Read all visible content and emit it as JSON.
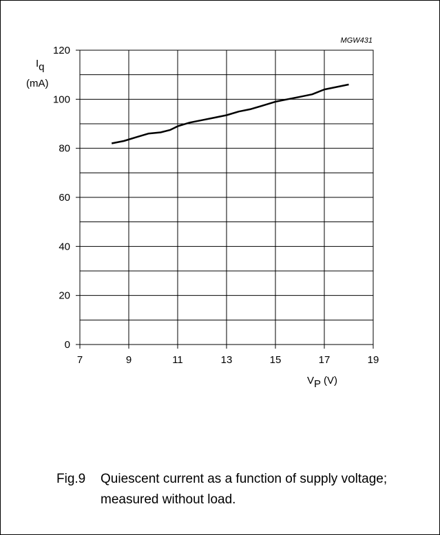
{
  "figure": {
    "code": "MGW431",
    "number": "Fig.9",
    "caption": "Quiescent current as a function of supply voltage; measured without load."
  },
  "chart_data": {
    "type": "line",
    "ylabel_symbol": "I",
    "ylabel_sub": "q",
    "ylabel_unit": "(mA)",
    "xlabel_symbol": "V",
    "xlabel_sub": "P",
    "xlabel_unit": "(V)",
    "xlim": [
      7,
      19
    ],
    "ylim": [
      0,
      120
    ],
    "xticks": [
      7,
      9,
      11,
      13,
      15,
      17,
      19
    ],
    "yticks": [
      0,
      20,
      40,
      60,
      80,
      100,
      120
    ],
    "grid": true,
    "series": [
      {
        "x": [
          8.3,
          8.8,
          9.3,
          9.8,
          10.3,
          10.7,
          11.0,
          11.5,
          12.0,
          12.5,
          13.0,
          13.5,
          14.0,
          14.5,
          15.0,
          15.5,
          16.0,
          16.5,
          17.0,
          17.5,
          18.0
        ],
        "y": [
          82,
          83,
          84.5,
          86,
          86.5,
          87.5,
          89,
          90.5,
          91.5,
          92.5,
          93.5,
          95,
          96,
          97.5,
          99,
          100,
          101,
          102,
          104,
          105,
          106
        ]
      }
    ],
    "line_color": "#000000"
  }
}
